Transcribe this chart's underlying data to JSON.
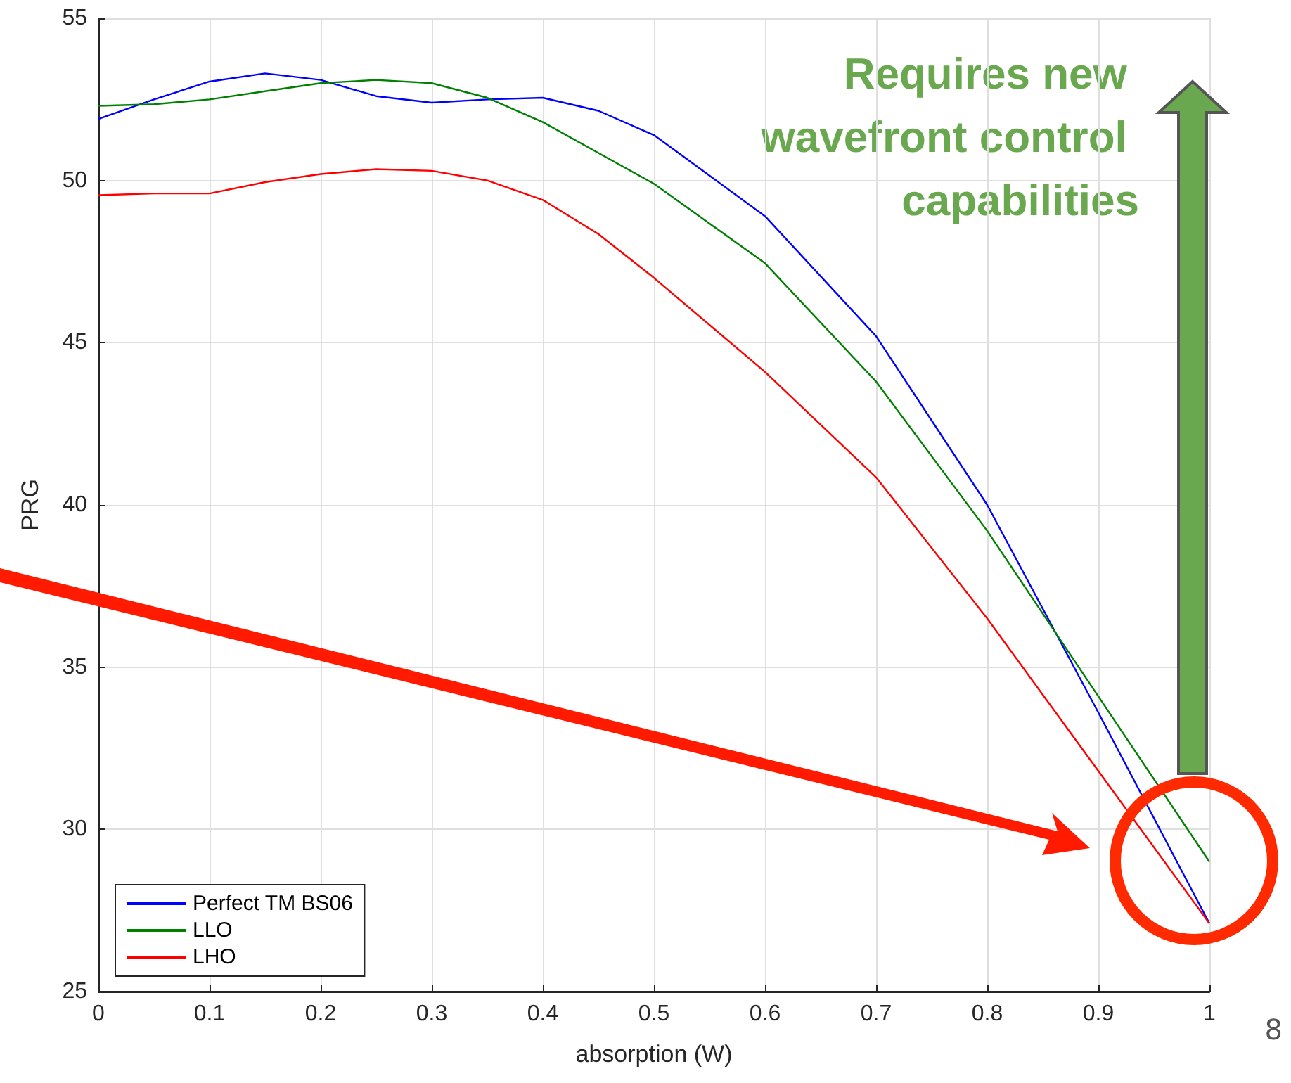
{
  "chart_data": {
    "type": "line",
    "xlabel": "absorption (W)",
    "ylabel": "PRG",
    "x": [
      0,
      0.05,
      0.1,
      0.15,
      0.2,
      0.25,
      0.3,
      0.35,
      0.4,
      0.45,
      0.5,
      0.6,
      0.7,
      0.8,
      0.9,
      1
    ],
    "series": [
      {
        "name": "Perfect TM BS06",
        "color": "#0000ff",
        "values": [
          51.9,
          52.5,
          53.05,
          53.3,
          53.1,
          52.6,
          52.4,
          52.5,
          52.55,
          52.15,
          51.4,
          48.9,
          45.2,
          40.0,
          33.6,
          27.1
        ]
      },
      {
        "name": "LLO",
        "color": "#008000",
        "values": [
          52.3,
          52.35,
          52.5,
          52.75,
          53.0,
          53.1,
          53.0,
          52.55,
          51.8,
          50.85,
          49.9,
          47.45,
          43.8,
          39.2,
          34.1,
          29.0
        ]
      },
      {
        "name": "LHO",
        "color": "#ff0000",
        "values": [
          49.55,
          49.6,
          49.6,
          49.95,
          50.2,
          50.35,
          50.3,
          50.0,
          49.4,
          48.35,
          47.0,
          44.1,
          40.85,
          36.5,
          31.8,
          27.1
        ]
      }
    ],
    "xlim": [
      0,
      1
    ],
    "xticks": [
      0,
      0.1,
      0.2,
      0.3,
      0.4,
      0.5,
      0.6,
      0.7,
      0.8,
      0.9,
      1
    ],
    "ylim": [
      25,
      55
    ],
    "yticks": [
      25,
      30,
      35,
      40,
      45,
      50,
      55
    ],
    "grid": true,
    "legend": "bottom left",
    "marker": "none",
    "line_style": "solid",
    "annotations": [
      "Requires new wavefront control capabilities",
      "8"
    ]
  }
}
